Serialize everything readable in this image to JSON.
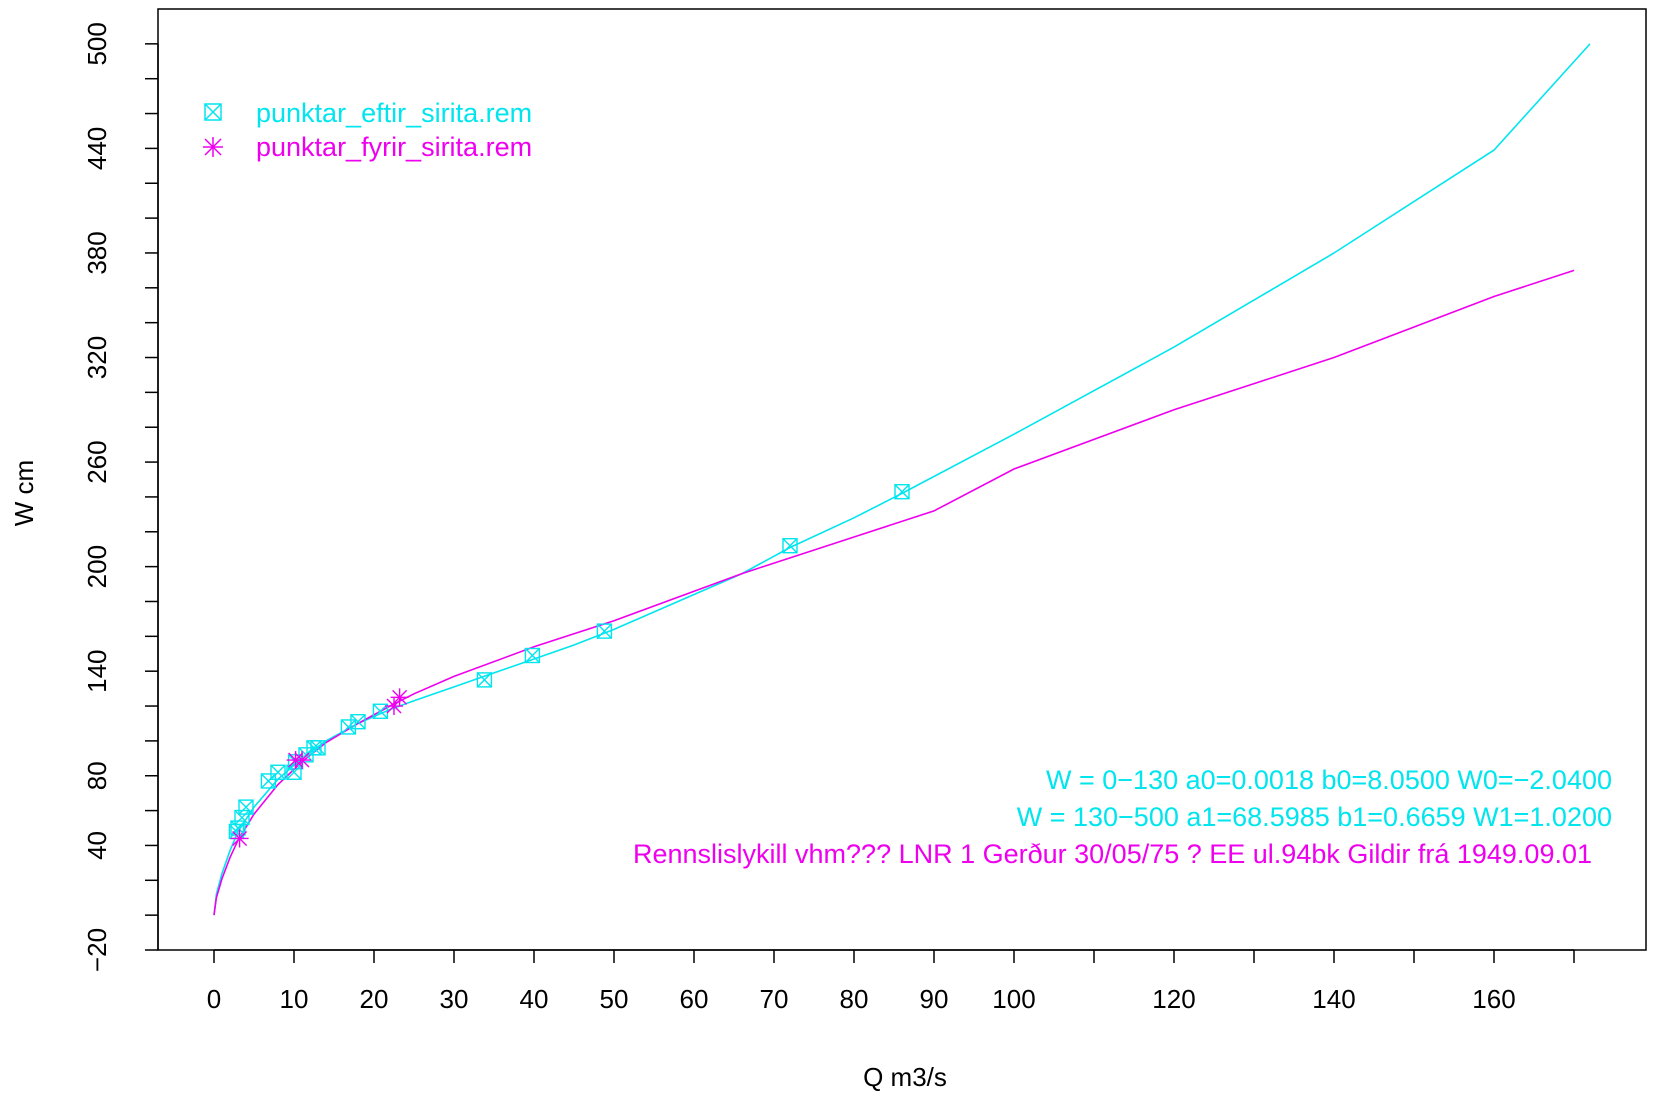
{
  "colors": {
    "cyan": "#00E5EE",
    "magenta": "#EE00EE",
    "axis": "#000000",
    "background": "#ffffff"
  },
  "chart_data": {
    "type": "line",
    "title": "",
    "xlabel": "Q m3/s",
    "ylabel": "W cm",
    "xlim": [
      -7,
      179
    ],
    "ylim": [
      -20,
      520
    ],
    "grid": false,
    "legend_position": "top-left",
    "x_ticks": [
      0,
      10,
      20,
      30,
      40,
      50,
      60,
      70,
      80,
      90,
      100,
      120,
      140,
      160
    ],
    "x_minor_ticks": [
      110,
      130,
      150,
      170
    ],
    "y_ticks": [
      -20,
      40,
      80,
      140,
      200,
      260,
      320,
      380,
      440,
      500
    ],
    "y_tick_labels": [
      "−20",
      "40",
      "80",
      "140",
      "200",
      "260",
      "320",
      "380",
      "440",
      "500"
    ],
    "y_minor_ticks": [
      0,
      20,
      60,
      100,
      120,
      160,
      180,
      220,
      240,
      280,
      300,
      340,
      360,
      400,
      420,
      460,
      480
    ],
    "legend": [
      {
        "label": "punktar_eftir_sirita.rem",
        "marker": "boxed-x",
        "color": "#00E5EE"
      },
      {
        "label": "punktar_fyrir_sirita.rem",
        "marker": "asterisk",
        "color": "#EE00EE"
      }
    ],
    "series": [
      {
        "name": "punktar_eftir_sirita.rem",
        "color": "#00E5EE",
        "marker": "boxed-x",
        "points": [
          {
            "x": 2.8,
            "y": 48
          },
          {
            "x": 3.0,
            "y": 50
          },
          {
            "x": 3.5,
            "y": 56
          },
          {
            "x": 4.0,
            "y": 62
          },
          {
            "x": 6.8,
            "y": 77
          },
          {
            "x": 8.0,
            "y": 82
          },
          {
            "x": 10.0,
            "y": 82
          },
          {
            "x": 10.2,
            "y": 88
          },
          {
            "x": 11.5,
            "y": 92
          },
          {
            "x": 12.5,
            "y": 96
          },
          {
            "x": 13.0,
            "y": 96
          },
          {
            "x": 16.8,
            "y": 108
          },
          {
            "x": 18.0,
            "y": 111
          },
          {
            "x": 20.8,
            "y": 117
          },
          {
            "x": 33.8,
            "y": 135
          },
          {
            "x": 39.8,
            "y": 149
          },
          {
            "x": 48.8,
            "y": 163
          },
          {
            "x": 72.0,
            "y": 212
          },
          {
            "x": 86.0,
            "y": 243
          }
        ],
        "curve": [
          {
            "x": 0.0,
            "y": 0
          },
          {
            "x": 0.3,
            "y": 12
          },
          {
            "x": 1.0,
            "y": 24
          },
          {
            "x": 2.0,
            "y": 37
          },
          {
            "x": 3.0,
            "y": 48
          },
          {
            "x": 5.0,
            "y": 62
          },
          {
            "x": 8.0,
            "y": 78
          },
          {
            "x": 11.0,
            "y": 90
          },
          {
            "x": 14.0,
            "y": 100
          },
          {
            "x": 18.0,
            "y": 110
          },
          {
            "x": 22.0,
            "y": 118
          },
          {
            "x": 25.0,
            "y": 123
          },
          {
            "x": 30.0,
            "y": 131
          },
          {
            "x": 35.0,
            "y": 139
          },
          {
            "x": 40.0,
            "y": 147
          },
          {
            "x": 45.0,
            "y": 155
          },
          {
            "x": 50.0,
            "y": 164
          },
          {
            "x": 60.0,
            "y": 184
          },
          {
            "x": 66.0,
            "y": 196
          },
          {
            "x": 72.0,
            "y": 211
          },
          {
            "x": 80.0,
            "y": 228
          },
          {
            "x": 86.0,
            "y": 242
          },
          {
            "x": 100.0,
            "y": 276
          },
          {
            "x": 120.0,
            "y": 326
          },
          {
            "x": 140.0,
            "y": 380
          },
          {
            "x": 160.0,
            "y": 439
          },
          {
            "x": 172.0,
            "y": 500
          }
        ]
      },
      {
        "name": "punktar_fyrir_sirita.rem",
        "color": "#EE00EE",
        "marker": "asterisk",
        "points": [
          {
            "x": 3.2,
            "y": 44
          },
          {
            "x": 10.2,
            "y": 89
          },
          {
            "x": 11.0,
            "y": 89
          },
          {
            "x": 22.5,
            "y": 120
          },
          {
            "x": 23.2,
            "y": 125
          }
        ],
        "curve": [
          {
            "x": 0.0,
            "y": 0
          },
          {
            "x": 0.3,
            "y": 10
          },
          {
            "x": 1.0,
            "y": 21
          },
          {
            "x": 2.0,
            "y": 33
          },
          {
            "x": 3.0,
            "y": 43
          },
          {
            "x": 5.0,
            "y": 58
          },
          {
            "x": 8.0,
            "y": 75
          },
          {
            "x": 11.0,
            "y": 88
          },
          {
            "x": 14.0,
            "y": 99
          },
          {
            "x": 18.0,
            "y": 110
          },
          {
            "x": 22.0,
            "y": 120
          },
          {
            "x": 25.0,
            "y": 127
          },
          {
            "x": 30.0,
            "y": 137
          },
          {
            "x": 40.0,
            "y": 154
          },
          {
            "x": 50.0,
            "y": 169
          },
          {
            "x": 66.0,
            "y": 196
          },
          {
            "x": 70.0,
            "y": 202
          },
          {
            "x": 80.0,
            "y": 217
          },
          {
            "x": 90.0,
            "y": 232
          },
          {
            "x": 100.0,
            "y": 256
          },
          {
            "x": 120.0,
            "y": 290
          },
          {
            "x": 140.0,
            "y": 320
          },
          {
            "x": 160.0,
            "y": 355
          },
          {
            "x": 170.0,
            "y": 370
          }
        ]
      }
    ]
  },
  "annotations": [
    {
      "text": "W = 0−130      a0=0.0018      b0=8.0500      W0=−2.0400",
      "color": "#00E5EE"
    },
    {
      "text": "W = 130−500      a1=68.5985      b1=0.6659      W1=1.0200",
      "color": "#00E5EE"
    },
    {
      "text": "Rennslislykill    vhm???   LNR 1    Gerður 30/05/75 ? EE ul.94bk      Gildir frá 1949.09.01",
      "color": "#EE00EE"
    }
  ]
}
